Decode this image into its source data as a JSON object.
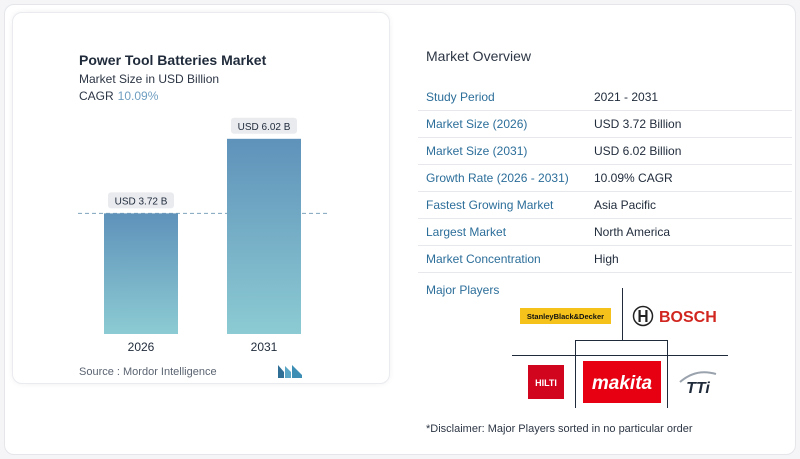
{
  "chart_data": {
    "type": "bar",
    "title": "Power Tool Batteries Market",
    "subtitle": "Market Size in USD Billion",
    "cagr_label": "CAGR",
    "cagr_value": "10.09%",
    "categories": [
      "2026",
      "2031"
    ],
    "values": [
      3.72,
      6.02
    ],
    "data_labels": [
      "USD 3.72 B",
      "USD 6.02 B"
    ],
    "ylim": [
      0,
      6.6
    ],
    "reference_line": 3.72,
    "grid": false,
    "colors": {
      "bar_top": "#5f92ba",
      "bar_bottom": "#8ccbd3",
      "label_bg": "#e9ebef",
      "ref_line": "#7fa3bd"
    }
  },
  "source": "Source :  Mordor Intelligence",
  "overview": {
    "title": "Market Overview",
    "rows": [
      {
        "key": "Study Period",
        "value": "2021 - 2031"
      },
      {
        "key": "Market Size (2026)",
        "value": "USD 3.72 Billion"
      },
      {
        "key": "Market Size (2031)",
        "value": "USD 6.02 Billion"
      },
      {
        "key": "Growth Rate (2026 - 2031)",
        "value": "10.09% CAGR"
      },
      {
        "key": "Fastest Growing Market",
        "value": "Asia Pacific"
      },
      {
        "key": "Largest Market",
        "value": "North America"
      },
      {
        "key": "Market Concentration",
        "value": "High"
      }
    ]
  },
  "players": {
    "title": "Major Players",
    "logos": {
      "stanley": "StanleyBlack&Decker",
      "bosch": "BOSCH",
      "hilti": "HILTI",
      "makita": "makita",
      "tti": "TTi"
    }
  },
  "disclaimer": "*Disclaimer: Major Players sorted in no particular order"
}
